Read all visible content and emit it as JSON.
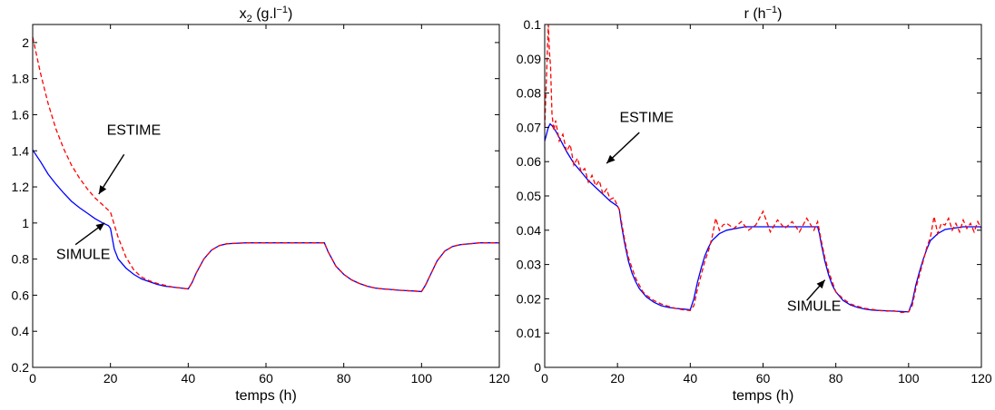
{
  "chart_data": [
    {
      "type": "line",
      "title_base": "x",
      "title_sub": "2",
      "title_mid": "  (g.l",
      "title_sup": "−1",
      "title_end": ")",
      "xlabel": "temps (h)",
      "ylabel": "",
      "xlim": [
        0,
        120
      ],
      "ylim": [
        0.2,
        2.1
      ],
      "xticks": [
        0,
        20,
        40,
        60,
        80,
        100,
        120
      ],
      "yticks": [
        0.2,
        0.4,
        0.6,
        0.8,
        1,
        1.2,
        1.4,
        1.6,
        1.8,
        2
      ],
      "grid": false,
      "series": [
        {
          "name": "SIMULE",
          "color": "#0000ff",
          "style": "solid",
          "x": [
            0,
            2,
            4,
            6,
            8,
            10,
            12,
            14,
            16,
            18,
            19.5,
            20,
            21,
            22,
            24,
            26,
            28,
            30,
            32,
            34,
            36,
            38,
            40,
            41,
            42,
            44,
            46,
            48,
            50,
            55,
            60,
            65,
            70,
            75,
            76,
            78,
            80,
            82,
            84,
            86,
            88,
            90,
            92,
            94,
            96,
            98,
            100,
            101,
            102,
            104,
            106,
            108,
            110,
            115,
            120
          ],
          "y": [
            1.405,
            1.34,
            1.27,
            1.215,
            1.165,
            1.12,
            1.085,
            1.055,
            1.025,
            1.0,
            0.985,
            0.97,
            0.855,
            0.8,
            0.75,
            0.715,
            0.69,
            0.675,
            0.66,
            0.65,
            0.645,
            0.64,
            0.635,
            0.67,
            0.72,
            0.8,
            0.85,
            0.875,
            0.885,
            0.89,
            0.89,
            0.89,
            0.89,
            0.89,
            0.84,
            0.76,
            0.715,
            0.685,
            0.665,
            0.65,
            0.64,
            0.635,
            0.632,
            0.628,
            0.625,
            0.623,
            0.62,
            0.655,
            0.7,
            0.79,
            0.845,
            0.87,
            0.88,
            0.89,
            0.89
          ]
        },
        {
          "name": "ESTIME",
          "color": "#ff0000",
          "style": "dashed",
          "x": [
            0,
            1,
            2,
            4,
            6,
            8,
            10,
            12,
            14,
            16,
            18,
            20,
            21,
            22,
            24,
            26,
            28,
            30,
            32,
            34,
            36,
            38,
            40,
            41,
            42,
            44,
            46,
            48,
            50,
            55,
            60,
            65,
            70,
            75,
            76,
            78,
            80,
            82,
            84,
            86,
            88,
            90,
            92,
            94,
            96,
            98,
            100,
            101,
            102,
            104,
            106,
            108,
            110,
            115,
            120
          ],
          "y": [
            2.03,
            1.93,
            1.83,
            1.66,
            1.52,
            1.41,
            1.32,
            1.25,
            1.19,
            1.14,
            1.1,
            1.06,
            0.99,
            0.92,
            0.81,
            0.74,
            0.7,
            0.68,
            0.665,
            0.655,
            0.645,
            0.64,
            0.635,
            0.67,
            0.72,
            0.8,
            0.85,
            0.875,
            0.885,
            0.89,
            0.89,
            0.89,
            0.89,
            0.89,
            0.84,
            0.76,
            0.715,
            0.685,
            0.665,
            0.65,
            0.64,
            0.635,
            0.632,
            0.628,
            0.625,
            0.623,
            0.62,
            0.655,
            0.7,
            0.79,
            0.845,
            0.87,
            0.88,
            0.89,
            0.89
          ]
        }
      ],
      "annotations": [
        {
          "text": "ESTIME",
          "text_at": [
            26,
            1.49
          ],
          "arrow_from": [
            23.5,
            1.38
          ],
          "arrow_to": [
            17,
            1.16
          ]
        },
        {
          "text": "SIMULE",
          "text_at": [
            13,
            0.8
          ],
          "arrow_from": [
            11,
            0.88
          ],
          "arrow_to": [
            18.5,
            1.0
          ]
        }
      ]
    },
    {
      "type": "line",
      "title_base": "r (h",
      "title_sup": "−1",
      "title_end": ")",
      "xlabel": "temps (h)",
      "ylabel": "",
      "xlim": [
        0,
        120
      ],
      "ylim": [
        0,
        0.1
      ],
      "xticks": [
        0,
        20,
        40,
        60,
        80,
        100,
        120
      ],
      "yticks": [
        0,
        0.01,
        0.02,
        0.03,
        0.04,
        0.05,
        0.06,
        0.07,
        0.08,
        0.09,
        0.1
      ],
      "grid": false,
      "series": [
        {
          "name": "SIMULE",
          "color": "#0000ff",
          "style": "solid",
          "x": [
            0,
            0.5,
            1,
            1.5,
            2,
            3,
            4,
            6,
            8,
            10,
            12,
            14,
            16,
            18,
            20,
            20.5,
            21,
            22,
            23,
            24,
            25,
            26,
            28,
            30,
            32,
            34,
            36,
            38,
            40,
            41,
            42,
            43,
            44,
            45,
            46,
            48,
            50,
            55,
            60,
            65,
            70,
            75,
            75.5,
            76,
            77,
            78,
            79,
            80,
            82,
            84,
            86,
            88,
            90,
            92,
            94,
            96,
            98,
            100,
            101,
            102,
            103,
            104,
            105,
            106,
            108,
            110,
            115,
            120
          ],
          "y": [
            0.066,
            0.068,
            0.07,
            0.071,
            0.0705,
            0.069,
            0.067,
            0.063,
            0.0595,
            0.057,
            0.0545,
            0.0525,
            0.0505,
            0.0485,
            0.047,
            0.046,
            0.042,
            0.036,
            0.031,
            0.0275,
            0.025,
            0.023,
            0.0205,
            0.019,
            0.018,
            0.0175,
            0.0172,
            0.017,
            0.0168,
            0.02,
            0.025,
            0.029,
            0.0325,
            0.035,
            0.037,
            0.039,
            0.04,
            0.041,
            0.041,
            0.041,
            0.041,
            0.041,
            0.039,
            0.036,
            0.031,
            0.027,
            0.024,
            0.022,
            0.0195,
            0.0182,
            0.0175,
            0.017,
            0.0167,
            0.0166,
            0.0165,
            0.0164,
            0.0163,
            0.0162,
            0.019,
            0.024,
            0.028,
            0.0315,
            0.0345,
            0.037,
            0.039,
            0.0402,
            0.041,
            0.041
          ]
        },
        {
          "name": "ESTIME",
          "color": "#ff0000",
          "style": "dashed",
          "x": [
            0,
            0.5,
            1,
            1.3,
            1.6,
            2,
            2.5,
            3,
            4,
            5,
            6,
            7,
            8,
            9,
            10,
            11,
            12,
            13,
            14,
            15,
            16,
            17,
            18,
            19,
            20,
            20.5,
            21,
            22,
            23,
            24,
            25,
            26,
            27,
            28,
            30,
            32,
            34,
            36,
            38,
            40,
            41,
            42,
            43,
            44,
            45,
            46,
            47,
            48,
            49,
            50,
            52,
            54,
            56,
            58,
            60,
            62,
            64,
            66,
            68,
            70,
            72,
            74,
            75,
            76,
            77,
            78,
            79,
            80,
            82,
            84,
            86,
            88,
            90,
            92,
            94,
            96,
            98,
            100,
            101,
            102,
            103,
            104,
            105,
            106,
            107,
            108,
            109,
            110,
            111,
            112,
            113,
            114,
            115,
            116,
            117,
            118,
            119,
            120
          ],
          "y": [
            0.07,
            0.085,
            0.1,
            0.092,
            0.088,
            0.074,
            0.069,
            0.072,
            0.066,
            0.068,
            0.063,
            0.065,
            0.059,
            0.061,
            0.057,
            0.058,
            0.054,
            0.056,
            0.053,
            0.0545,
            0.0505,
            0.052,
            0.049,
            0.0495,
            0.047,
            0.046,
            0.043,
            0.037,
            0.032,
            0.029,
            0.026,
            0.024,
            0.022,
            0.021,
            0.0195,
            0.0185,
            0.0178,
            0.0172,
            0.0168,
            0.0166,
            0.018,
            0.023,
            0.027,
            0.031,
            0.034,
            0.038,
            0.0435,
            0.04,
            0.0415,
            0.042,
            0.0405,
            0.0425,
            0.04,
            0.0415,
            0.0455,
            0.0395,
            0.043,
            0.0405,
            0.0425,
            0.0395,
            0.0435,
            0.04,
            0.0425,
            0.037,
            0.032,
            0.028,
            0.025,
            0.022,
            0.02,
            0.0185,
            0.0178,
            0.0172,
            0.0169,
            0.0166,
            0.0164,
            0.0165,
            0.016,
            0.0162,
            0.018,
            0.023,
            0.027,
            0.031,
            0.035,
            0.038,
            0.044,
            0.039,
            0.042,
            0.0415,
            0.0435,
            0.04,
            0.042,
            0.0395,
            0.043,
            0.0405,
            0.042,
            0.0395,
            0.0425,
            0.0405
          ]
        }
      ],
      "annotations": [
        {
          "text": "ESTIME",
          "text_at": [
            28,
            0.0715
          ],
          "arrow_from": [
            26,
            0.0685
          ],
          "arrow_to": [
            17,
            0.0595
          ]
        },
        {
          "text": "SIMULE",
          "text_at": [
            74,
            0.0165
          ],
          "arrow_from": [
            72,
            0.0195
          ],
          "arrow_to": [
            77,
            0.0255
          ]
        }
      ]
    }
  ]
}
